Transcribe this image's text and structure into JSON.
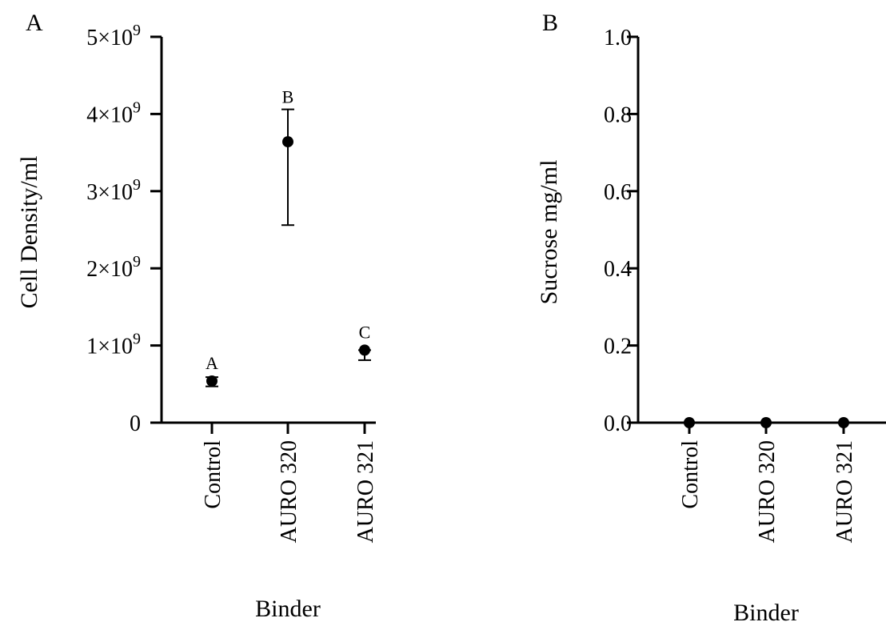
{
  "chart_data": [
    {
      "type": "scatter",
      "panel_label": "A",
      "xlabel": "Binder",
      "ylabel": "Cell Density/ml",
      "categories": [
        "Control",
        "AURO 320",
        "AURO 321"
      ],
      "y_ticks": [
        {
          "value": 0,
          "label": "0",
          "exp": ""
        },
        {
          "value": 1000000000,
          "label": "1×10",
          "exp": "9"
        },
        {
          "value": 2000000000,
          "label": "2×10",
          "exp": "9"
        },
        {
          "value": 3000000000,
          "label": "3×10",
          "exp": "9"
        },
        {
          "value": 4000000000,
          "label": "4×10",
          "exp": "9"
        },
        {
          "value": 5000000000,
          "label": "5×10",
          "exp": "9"
        }
      ],
      "ylim": [
        0,
        5000000000
      ],
      "points": [
        {
          "category": "Control",
          "y": 540000000,
          "err_low": 470000000,
          "err_high": 590000000,
          "sig": "A"
        },
        {
          "category": "AURO 320",
          "y": 3640000000,
          "err_low": 2560000000,
          "err_high": 4060000000,
          "sig": "B"
        },
        {
          "category": "AURO 321",
          "y": 940000000,
          "err_low": 810000000,
          "err_high": 940000000,
          "sig": "C"
        }
      ]
    },
    {
      "type": "scatter",
      "panel_label": "B",
      "xlabel": "Binder",
      "ylabel": "Sucrose mg/ml",
      "categories": [
        "Control",
        "AURO 320",
        "AURO 321"
      ],
      "y_ticks": [
        {
          "value": 0.0,
          "label": "0.0",
          "exp": ""
        },
        {
          "value": 0.2,
          "label": "0.2",
          "exp": ""
        },
        {
          "value": 0.4,
          "label": "0.4",
          "exp": ""
        },
        {
          "value": 0.6,
          "label": "0.6",
          "exp": ""
        },
        {
          "value": 0.8,
          "label": "0.8",
          "exp": ""
        },
        {
          "value": 1.0,
          "label": "1.0",
          "exp": ""
        }
      ],
      "ylim": [
        0,
        1.0
      ],
      "points": [
        {
          "category": "Control",
          "y": 0,
          "err_low": 0,
          "err_high": 0,
          "sig": ""
        },
        {
          "category": "AURO 320",
          "y": 0,
          "err_low": 0,
          "err_high": 0,
          "sig": ""
        },
        {
          "category": "AURO 321",
          "y": 0,
          "err_low": 0,
          "err_high": 0,
          "sig": ""
        }
      ]
    }
  ]
}
